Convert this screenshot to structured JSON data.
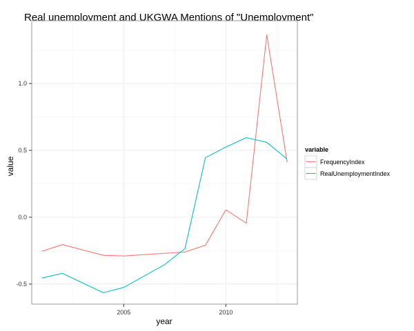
{
  "chart_data": {
    "type": "line",
    "title": "Real unemployment and UKGWA Mentions of \"Unemployment\"",
    "xlabel": "year",
    "ylabel": "value",
    "xlim": [
      2000.5,
      2013.5
    ],
    "ylim": [
      -0.65,
      1.47
    ],
    "x_ticks": [
      2005,
      2010
    ],
    "y_ticks": [
      -0.5,
      0.0,
      0.5,
      1.0
    ],
    "x_tick_labels": [
      "2005",
      "2010"
    ],
    "y_tick_labels": [
      "-0.5",
      "0.0",
      "0.5",
      "1.0"
    ],
    "grid": true,
    "legend": {
      "title": "variable",
      "placement": "right"
    },
    "series": [
      {
        "name": "FrequencyIndex",
        "color": "#F8766D",
        "x": [
          2001,
          2002,
          2004,
          2005,
          2008,
          2009,
          2010,
          2011,
          2012,
          2013
        ],
        "y": [
          -0.255,
          -0.205,
          -0.285,
          -0.29,
          -0.26,
          -0.21,
          0.055,
          -0.045,
          1.365,
          0.41
        ]
      },
      {
        "name": "RealUnemploymentIndex",
        "color": "#00BFC4",
        "x": [
          2001,
          2002,
          2004,
          2005,
          2007,
          2008,
          2009,
          2010,
          2011,
          2012,
          2013
        ],
        "y": [
          -0.455,
          -0.42,
          -0.565,
          -0.525,
          -0.355,
          -0.235,
          0.445,
          0.525,
          0.595,
          0.56,
          0.435
        ]
      }
    ]
  }
}
